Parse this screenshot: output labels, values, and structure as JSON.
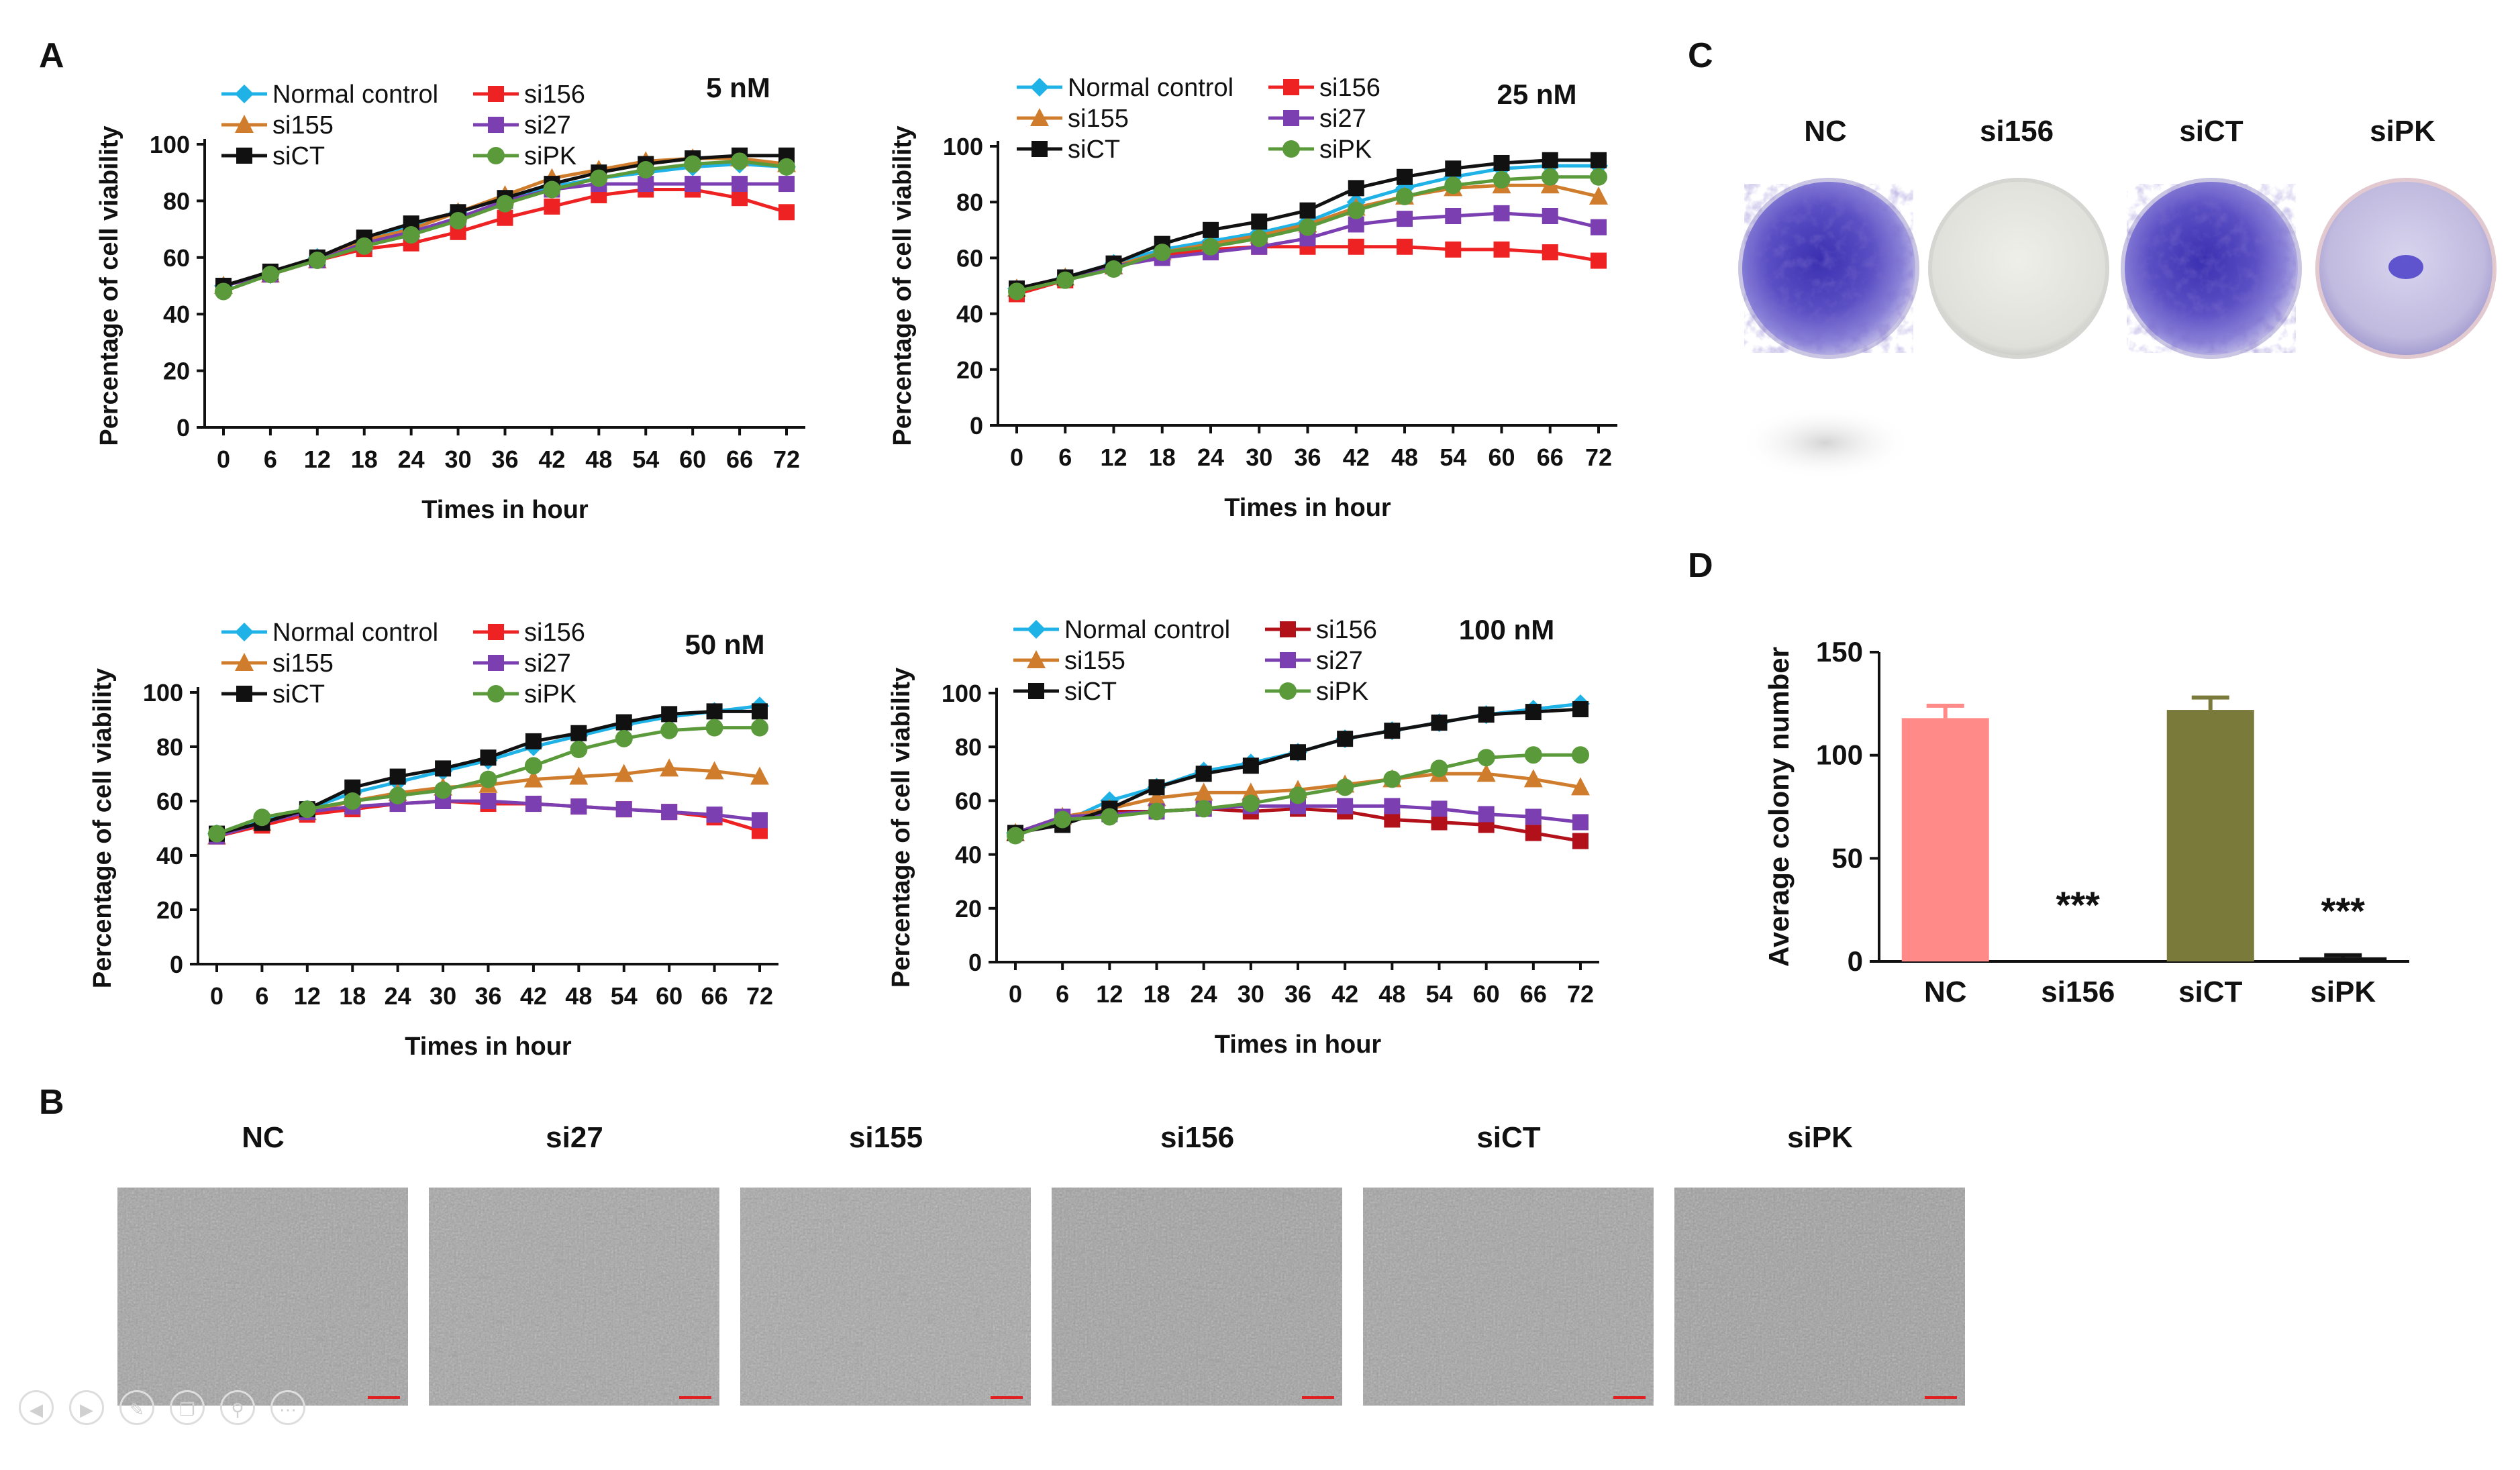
{
  "panel_labels": [
    "A",
    "B",
    "C",
    "D"
  ],
  "chart_data": [
    {
      "type": "line",
      "title": "5 nM",
      "xlabel": "Times in hour",
      "ylabel": "Percentage of cell viability",
      "x": [
        0,
        6,
        12,
        18,
        24,
        30,
        36,
        42,
        48,
        54,
        60,
        66,
        72
      ],
      "xtick_labels": [
        "0",
        "6",
        "12",
        "18",
        "24",
        "30",
        "36",
        "42",
        "48",
        "54",
        "60",
        "66",
        "72"
      ],
      "ylim": [
        0,
        100
      ],
      "yticks": [
        "0",
        "20",
        "40",
        "60",
        "80",
        "100"
      ],
      "series": [
        {
          "name": "Normal control",
          "color": "#1fb2e6",
          "marker": "diamond",
          "values": [
            50,
            54,
            60,
            66,
            71,
            76,
            81,
            85,
            88,
            90,
            92,
            93,
            92
          ]
        },
        {
          "name": "si156",
          "color": "#ee2222",
          "marker": "square",
          "values": [
            50,
            54,
            59,
            63,
            65,
            69,
            74,
            78,
            82,
            84,
            84,
            81,
            76
          ]
        },
        {
          "name": "si155",
          "color": "#cf7d2c",
          "marker": "triangle",
          "values": [
            50,
            54,
            59,
            66,
            70,
            76,
            82,
            88,
            91,
            94,
            95,
            95,
            93
          ]
        },
        {
          "name": "si27",
          "color": "#7b3fb2",
          "marker": "square",
          "values": [
            50,
            54,
            59,
            65,
            69,
            74,
            80,
            84,
            86,
            86,
            86,
            86,
            86
          ]
        },
        {
          "name": "siCT",
          "color": "#111111",
          "marker": "square",
          "values": [
            50,
            55,
            60,
            67,
            72,
            76,
            81,
            86,
            90,
            93,
            95,
            96,
            96
          ]
        },
        {
          "name": "siPK",
          "color": "#5a9a3a",
          "marker": "circle",
          "values": [
            48,
            54,
            59,
            64,
            68,
            73,
            79,
            84,
            88,
            91,
            93,
            94,
            92
          ]
        }
      ]
    },
    {
      "type": "line",
      "title": "25 nM",
      "xlabel": "Times in hour",
      "ylabel": "Percentage of cell viability",
      "x": [
        0,
        6,
        12,
        18,
        24,
        30,
        36,
        42,
        48,
        54,
        60,
        66,
        72
      ],
      "xtick_labels": [
        "0",
        "6",
        "12",
        "18",
        "24",
        "30",
        "36",
        "42",
        "48",
        "54",
        "60",
        "66",
        "72"
      ],
      "ylim": [
        0,
        100
      ],
      "yticks": [
        "0",
        "20",
        "40",
        "60",
        "80",
        "100"
      ],
      "series": [
        {
          "name": "Normal control",
          "color": "#1fb2e6",
          "marker": "diamond",
          "values": [
            49,
            53,
            58,
            63,
            66,
            69,
            73,
            80,
            85,
            89,
            92,
            93,
            93
          ]
        },
        {
          "name": "si156",
          "color": "#ee2222",
          "marker": "square",
          "values": [
            47,
            52,
            57,
            61,
            63,
            64,
            64,
            64,
            64,
            63,
            63,
            62,
            59
          ]
        },
        {
          "name": "si155",
          "color": "#cf7d2c",
          "marker": "triangle",
          "values": [
            49,
            53,
            57,
            62,
            65,
            68,
            72,
            78,
            82,
            85,
            86,
            86,
            82
          ]
        },
        {
          "name": "si27",
          "color": "#7b3fb2",
          "marker": "square",
          "values": [
            49,
            53,
            57,
            60,
            62,
            64,
            67,
            72,
            74,
            75,
            76,
            75,
            71
          ]
        },
        {
          "name": "siCT",
          "color": "#111111",
          "marker": "square",
          "values": [
            49,
            53,
            58,
            65,
            70,
            73,
            77,
            85,
            89,
            92,
            94,
            95,
            95
          ]
        },
        {
          "name": "siPK",
          "color": "#5a9a3a",
          "marker": "circle",
          "values": [
            48,
            52,
            56,
            62,
            64,
            67,
            71,
            77,
            82,
            86,
            88,
            89,
            89
          ]
        }
      ]
    },
    {
      "type": "line",
      "title": "50 nM",
      "xlabel": "Times in hour",
      "ylabel": "Percentage of cell viability",
      "x": [
        0,
        6,
        12,
        18,
        24,
        30,
        36,
        42,
        48,
        54,
        60,
        66,
        72
      ],
      "xtick_labels": [
        "0",
        "6",
        "12",
        "18",
        "24",
        "30",
        "36",
        "42",
        "48",
        "54",
        "60",
        "66",
        "72"
      ],
      "ylim": [
        0,
        100
      ],
      "yticks": [
        "0",
        "20",
        "40",
        "60",
        "80",
        "100"
      ],
      "series": [
        {
          "name": "Normal control",
          "color": "#1fb2e6",
          "marker": "diamond",
          "values": [
            48,
            53,
            57,
            63,
            67,
            71,
            75,
            80,
            84,
            88,
            91,
            93,
            95
          ]
        },
        {
          "name": "si156",
          "color": "#ee2222",
          "marker": "square",
          "values": [
            47,
            51,
            55,
            57,
            59,
            60,
            59,
            59,
            58,
            57,
            56,
            54,
            49
          ]
        },
        {
          "name": "si155",
          "color": "#cf7d2c",
          "marker": "triangle",
          "values": [
            47,
            52,
            56,
            60,
            63,
            65,
            66,
            68,
            69,
            70,
            72,
            71,
            69
          ]
        },
        {
          "name": "si27",
          "color": "#7b3fb2",
          "marker": "square",
          "values": [
            47,
            52,
            56,
            58,
            59,
            60,
            60,
            59,
            58,
            57,
            56,
            55,
            53
          ]
        },
        {
          "name": "siCT",
          "color": "#111111",
          "marker": "square",
          "values": [
            48,
            52,
            57,
            65,
            69,
            72,
            76,
            82,
            85,
            89,
            92,
            93,
            93
          ]
        },
        {
          "name": "siPK",
          "color": "#5a9a3a",
          "marker": "circle",
          "values": [
            48,
            54,
            57,
            60,
            62,
            64,
            68,
            73,
            79,
            83,
            86,
            87,
            87
          ]
        }
      ]
    },
    {
      "type": "line",
      "title": "100 nM",
      "xlabel": "Times in hour",
      "ylabel": "Percentage of cell viability",
      "x": [
        0,
        6,
        12,
        18,
        24,
        30,
        36,
        42,
        48,
        54,
        60,
        66,
        72
      ],
      "xtick_labels": [
        "0",
        "6",
        "12",
        "18",
        "24",
        "30",
        "36",
        "42",
        "48",
        "54",
        "60",
        "66",
        "72"
      ],
      "ylim": [
        0,
        100
      ],
      "yticks": [
        "0",
        "20",
        "40",
        "60",
        "80",
        "100"
      ],
      "series": [
        {
          "name": "Normal control",
          "color": "#1fb2e6",
          "marker": "diamond",
          "values": [
            48,
            52,
            60,
            65,
            71,
            74,
            78,
            83,
            86,
            89,
            92,
            94,
            96
          ]
        },
        {
          "name": "si156",
          "color": "#b3111a",
          "marker": "square",
          "values": [
            48,
            54,
            56,
            56,
            57,
            56,
            57,
            56,
            53,
            52,
            51,
            48,
            45
          ]
        },
        {
          "name": "si155",
          "color": "#cf7d2c",
          "marker": "triangle",
          "values": [
            48,
            54,
            57,
            61,
            63,
            63,
            64,
            66,
            68,
            70,
            70,
            68,
            65
          ]
        },
        {
          "name": "si27",
          "color": "#7b3fb2",
          "marker": "square",
          "values": [
            48,
            54,
            55,
            56,
            57,
            58,
            58,
            58,
            58,
            57,
            55,
            54,
            52
          ]
        },
        {
          "name": "siCT",
          "color": "#111111",
          "marker": "square",
          "values": [
            48,
            51,
            57,
            65,
            70,
            73,
            78,
            83,
            86,
            89,
            92,
            93,
            94
          ]
        },
        {
          "name": "siPK",
          "color": "#5a9a3a",
          "marker": "circle",
          "values": [
            47,
            53,
            54,
            56,
            57,
            59,
            62,
            65,
            68,
            72,
            76,
            77,
            77
          ]
        }
      ]
    },
    {
      "type": "bar",
      "title": "",
      "xlabel": "",
      "ylabel": "Average colony number",
      "categories": [
        "NC",
        "si156",
        "siCT",
        "siPK"
      ],
      "values": [
        118,
        0,
        122,
        2
      ],
      "errors": [
        6,
        0,
        6,
        1
      ],
      "colors": [
        "#ff8a87",
        "#ff8a87",
        "#7a7a3a",
        "#111111"
      ],
      "annotations": [
        "",
        "***",
        "",
        "***"
      ],
      "ylim": [
        0,
        150
      ],
      "yticks": [
        "0",
        "50",
        "100",
        "150"
      ]
    }
  ],
  "panel_c": {
    "labels": [
      "NC",
      "si156",
      "siCT",
      "siPK"
    ],
    "description_colors": {
      "stain": "#5b4fc0",
      "plate_empty": "#e4e4de",
      "plate_edge": "#d0d0d8"
    }
  },
  "panel_b": {
    "labels": [
      "NC",
      "si27",
      "si155",
      "si156",
      "siCT",
      "siPK"
    ]
  },
  "viewer_controls": [
    "rotate-left-icon",
    "rotate-right-icon",
    "draw-icon",
    "copy-icon",
    "zoom-icon",
    "more-icon"
  ]
}
